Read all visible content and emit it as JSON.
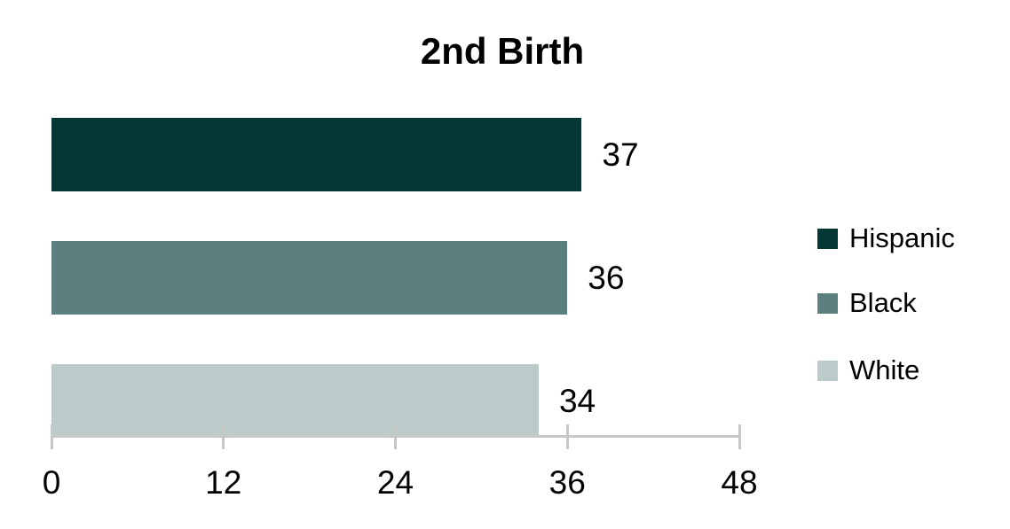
{
  "chart_data": {
    "type": "bar",
    "orientation": "horizontal",
    "title": "2nd Birth",
    "categories": [
      "Hispanic",
      "Black",
      "White"
    ],
    "values": [
      37,
      36,
      34
    ],
    "value_labels": [
      "37",
      "36",
      "34"
    ],
    "colors": [
      "#053734",
      "#5c807d",
      "#bbcbc9"
    ],
    "xlim": [
      0,
      48
    ],
    "xticks": [
      0,
      12,
      24,
      36,
      48
    ],
    "xtick_labels": [
      "0",
      "12",
      "24",
      "36",
      "48"
    ],
    "grid": false,
    "legend_position": "right",
    "axis_color": "#c7c7c7",
    "text_color": "#000000"
  }
}
